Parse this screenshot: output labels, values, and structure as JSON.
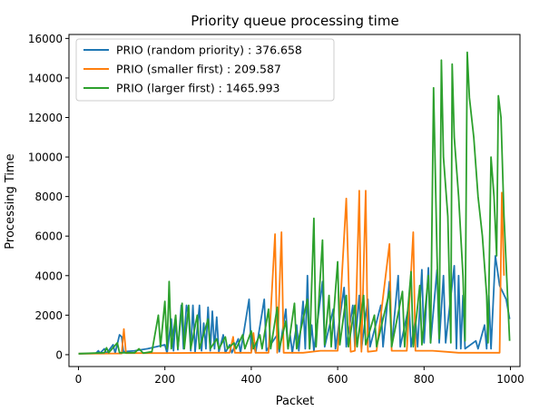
{
  "chart_data": {
    "type": "line",
    "title": "Priority queue processing time",
    "xlabel": "Packet",
    "ylabel": "Processing Time",
    "xlim": [
      -22,
      1022
    ],
    "ylim": [
      -600,
      16200
    ],
    "xticks": [
      0,
      200,
      400,
      600,
      800,
      1000
    ],
    "yticks": [
      0,
      2000,
      4000,
      6000,
      8000,
      10000,
      12000,
      14000,
      16000
    ],
    "grid": false,
    "legend_position": "top-left",
    "series": [
      {
        "name": "PRIO (random priority) : 376.658",
        "color": "#1f77b4",
        "points": [
          [
            0,
            50
          ],
          [
            40,
            60
          ],
          [
            46,
            200
          ],
          [
            50,
            80
          ],
          [
            60,
            300
          ],
          [
            65,
            60
          ],
          [
            80,
            500
          ],
          [
            85,
            80
          ],
          [
            95,
            1000
          ],
          [
            100,
            900
          ],
          [
            104,
            150
          ],
          [
            130,
            200
          ],
          [
            160,
            300
          ],
          [
            200,
            500
          ],
          [
            205,
            80
          ],
          [
            215,
            1800
          ],
          [
            220,
            200
          ],
          [
            225,
            1800
          ],
          [
            230,
            250
          ],
          [
            238,
            2500
          ],
          [
            243,
            300
          ],
          [
            250,
            2500
          ],
          [
            255,
            2000
          ],
          [
            260,
            200
          ],
          [
            265,
            2500
          ],
          [
            270,
            150
          ],
          [
            280,
            2500
          ],
          [
            285,
            200
          ],
          [
            290,
            1600
          ],
          [
            295,
            300
          ],
          [
            300,
            2400
          ],
          [
            305,
            200
          ],
          [
            310,
            2200
          ],
          [
            315,
            300
          ],
          [
            320,
            1900
          ],
          [
            325,
            150
          ],
          [
            335,
            1000
          ],
          [
            340,
            100
          ],
          [
            350,
            500
          ],
          [
            355,
            100
          ],
          [
            370,
            800
          ],
          [
            375,
            100
          ],
          [
            395,
            2800
          ],
          [
            400,
            200
          ],
          [
            405,
            600
          ],
          [
            410,
            100
          ],
          [
            430,
            2800
          ],
          [
            435,
            200
          ],
          [
            460,
            1000
          ],
          [
            465,
            150
          ],
          [
            480,
            2300
          ],
          [
            485,
            300
          ],
          [
            490,
            1000
          ],
          [
            495,
            100
          ],
          [
            505,
            1500
          ],
          [
            510,
            200
          ],
          [
            520,
            2700
          ],
          [
            525,
            300
          ],
          [
            530,
            4000
          ],
          [
            535,
            300
          ],
          [
            540,
            1500
          ],
          [
            545,
            200
          ],
          [
            565,
            3700
          ],
          [
            570,
            400
          ],
          [
            590,
            2300
          ],
          [
            595,
            300
          ],
          [
            615,
            3400
          ],
          [
            620,
            400
          ],
          [
            635,
            2500
          ],
          [
            640,
            400
          ],
          [
            650,
            3000
          ],
          [
            655,
            300
          ],
          [
            670,
            2800
          ],
          [
            675,
            400
          ],
          [
            700,
            2500
          ],
          [
            705,
            400
          ],
          [
            720,
            3700
          ],
          [
            725,
            400
          ],
          [
            740,
            4000
          ],
          [
            745,
            400
          ],
          [
            765,
            2500
          ],
          [
            770,
            400
          ],
          [
            780,
            1800
          ],
          [
            785,
            400
          ],
          [
            795,
            4300
          ],
          [
            800,
            600
          ],
          [
            810,
            4400
          ],
          [
            815,
            600
          ],
          [
            830,
            4300
          ],
          [
            835,
            600
          ],
          [
            845,
            4000
          ],
          [
            850,
            600
          ],
          [
            870,
            4500
          ],
          [
            875,
            300
          ],
          [
            880,
            4000
          ],
          [
            885,
            300
          ],
          [
            890,
            3000
          ],
          [
            895,
            300
          ],
          [
            920,
            700
          ],
          [
            925,
            300
          ],
          [
            940,
            1500
          ],
          [
            945,
            300
          ],
          [
            950,
            3000
          ],
          [
            955,
            300
          ],
          [
            965,
            5000
          ],
          [
            975,
            3500
          ],
          [
            990,
            2800
          ],
          [
            998,
            1800
          ]
        ]
      },
      {
        "name": "PRIO (smaller first) : 209.587",
        "color": "#ff7f0e",
        "points": [
          [
            0,
            50
          ],
          [
            100,
            60
          ],
          [
            105,
            1300
          ],
          [
            110,
            80
          ],
          [
            200,
            80
          ],
          [
            300,
            100
          ],
          [
            350,
            100
          ],
          [
            358,
            900
          ],
          [
            362,
            100
          ],
          [
            400,
            100
          ],
          [
            405,
            1100
          ],
          [
            410,
            100
          ],
          [
            440,
            100
          ],
          [
            455,
            6100
          ],
          [
            460,
            100
          ],
          [
            470,
            6200
          ],
          [
            475,
            100
          ],
          [
            520,
            100
          ],
          [
            560,
            200
          ],
          [
            600,
            200
          ],
          [
            620,
            7900
          ],
          [
            630,
            150
          ],
          [
            640,
            200
          ],
          [
            650,
            8300
          ],
          [
            655,
            150
          ],
          [
            665,
            8300
          ],
          [
            670,
            150
          ],
          [
            690,
            200
          ],
          [
            720,
            5600
          ],
          [
            725,
            200
          ],
          [
            760,
            200
          ],
          [
            775,
            6200
          ],
          [
            780,
            200
          ],
          [
            820,
            200
          ],
          [
            850,
            150
          ],
          [
            880,
            100
          ],
          [
            920,
            100
          ],
          [
            960,
            100
          ],
          [
            975,
            100
          ],
          [
            980,
            8200
          ],
          [
            985,
            4000
          ]
        ]
      },
      {
        "name": "PRIO (larger first) : 1465.993",
        "color": "#2ca02c",
        "points": [
          [
            0,
            50
          ],
          [
            60,
            100
          ],
          [
            65,
            350
          ],
          [
            70,
            100
          ],
          [
            90,
            600
          ],
          [
            95,
            100
          ],
          [
            130,
            100
          ],
          [
            140,
            300
          ],
          [
            150,
            80
          ],
          [
            170,
            150
          ],
          [
            185,
            2000
          ],
          [
            190,
            400
          ],
          [
            200,
            2700
          ],
          [
            205,
            300
          ],
          [
            210,
            3700
          ],
          [
            215,
            300
          ],
          [
            225,
            2000
          ],
          [
            230,
            300
          ],
          [
            240,
            2600
          ],
          [
            245,
            300
          ],
          [
            255,
            2500
          ],
          [
            260,
            300
          ],
          [
            275,
            2000
          ],
          [
            280,
            300
          ],
          [
            300,
            1800
          ],
          [
            305,
            300
          ],
          [
            320,
            800
          ],
          [
            325,
            300
          ],
          [
            340,
            900
          ],
          [
            345,
            300
          ],
          [
            360,
            600
          ],
          [
            365,
            300
          ],
          [
            380,
            1000
          ],
          [
            385,
            300
          ],
          [
            400,
            1200
          ],
          [
            405,
            300
          ],
          [
            420,
            1000
          ],
          [
            425,
            300
          ],
          [
            440,
            2300
          ],
          [
            445,
            300
          ],
          [
            460,
            2400
          ],
          [
            465,
            300
          ],
          [
            480,
            1700
          ],
          [
            485,
            300
          ],
          [
            500,
            2600
          ],
          [
            505,
            300
          ],
          [
            530,
            2800
          ],
          [
            535,
            300
          ],
          [
            545,
            6900
          ],
          [
            550,
            400
          ],
          [
            565,
            5800
          ],
          [
            570,
            500
          ],
          [
            580,
            3000
          ],
          [
            585,
            400
          ],
          [
            600,
            4700
          ],
          [
            605,
            500
          ],
          [
            620,
            3000
          ],
          [
            625,
            400
          ],
          [
            640,
            2500
          ],
          [
            645,
            400
          ],
          [
            660,
            3000
          ],
          [
            665,
            500
          ],
          [
            685,
            2000
          ],
          [
            690,
            400
          ],
          [
            720,
            3200
          ],
          [
            725,
            400
          ],
          [
            750,
            3200
          ],
          [
            755,
            400
          ],
          [
            770,
            4200
          ],
          [
            775,
            400
          ],
          [
            790,
            3500
          ],
          [
            795,
            500
          ],
          [
            810,
            4000
          ],
          [
            815,
            600
          ],
          [
            822,
            13500
          ],
          [
            830,
            5000
          ],
          [
            835,
            800
          ],
          [
            840,
            14900
          ],
          [
            845,
            10000
          ],
          [
            855,
            7000
          ],
          [
            862,
            600
          ],
          [
            865,
            14700
          ],
          [
            870,
            11000
          ],
          [
            880,
            8000
          ],
          [
            890,
            4000
          ],
          [
            895,
            700
          ],
          [
            900,
            15300
          ],
          [
            905,
            13000
          ],
          [
            915,
            11000
          ],
          [
            925,
            8000
          ],
          [
            935,
            6000
          ],
          [
            945,
            3000
          ],
          [
            948,
            600
          ],
          [
            955,
            10000
          ],
          [
            962,
            8000
          ],
          [
            968,
            5000
          ],
          [
            972,
            13100
          ],
          [
            978,
            12000
          ],
          [
            985,
            7000
          ],
          [
            995,
            2200
          ],
          [
            998,
            700
          ]
        ]
      }
    ]
  }
}
